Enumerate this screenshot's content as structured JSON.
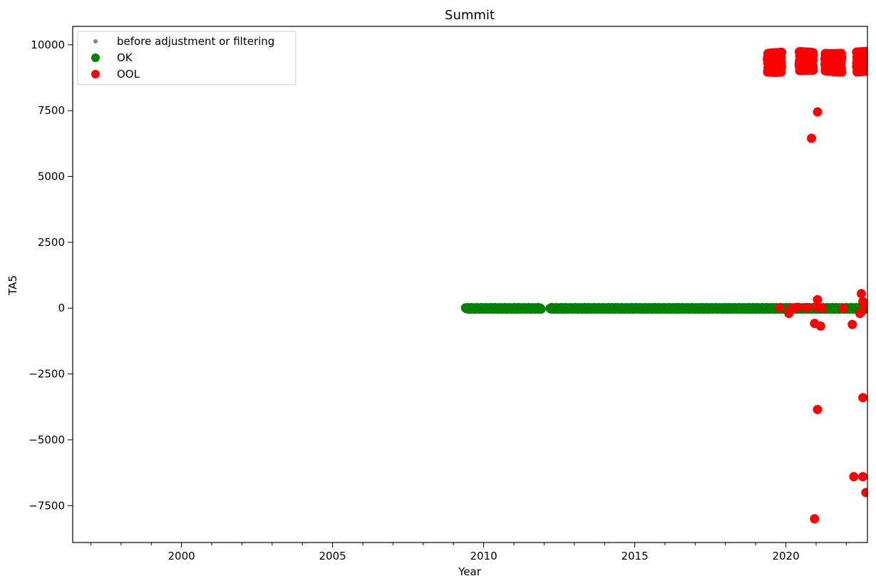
{
  "chart_data": {
    "type": "scatter",
    "title": "Summit",
    "xlabel": "Year",
    "ylabel": "TA5",
    "xlim": [
      1996.4,
      2022.7
    ],
    "ylim": [
      -8900,
      10700
    ],
    "x_ticks": [
      2000,
      2005,
      2010,
      2015,
      2020
    ],
    "x_tick_labels": [
      "2000",
      "2005",
      "2010",
      "2015",
      "2020"
    ],
    "y_ticks": [
      -7500,
      -5000,
      -2500,
      0,
      2500,
      5000,
      7500,
      10000
    ],
    "y_tick_labels": [
      "−7500",
      "−5000",
      "−2500",
      "0",
      "2500",
      "5000",
      "7500",
      "10000"
    ],
    "grid": false,
    "legend_position": "top-left",
    "series": [
      {
        "name": "before adjustment or filtering",
        "color": "#808080",
        "marker": "small-dot",
        "points": []
      },
      {
        "name": "OK",
        "color": "#008000",
        "marker": "dot",
        "segments": [
          {
            "x_start": 2009.4,
            "x_end": 2011.9,
            "y": 0
          },
          {
            "x_start": 2012.2,
            "x_end": 2019.0,
            "y": 0
          },
          {
            "x_start": 2019.0,
            "x_end": 2022.7,
            "y": 0
          }
        ]
      },
      {
        "name": "OOL",
        "color": "#ff0000",
        "marker": "dot",
        "clusters": [
          {
            "x_start": 2019.4,
            "x_end": 2019.85,
            "y_min": 9000,
            "y_max": 9800
          },
          {
            "x_start": 2020.45,
            "x_end": 2020.9,
            "y_min": 9000,
            "y_max": 9800
          },
          {
            "x_start": 2021.3,
            "x_end": 2021.85,
            "y_min": 9000,
            "y_max": 9800
          },
          {
            "x_start": 2022.35,
            "x_end": 2022.7,
            "y_min": 9000,
            "y_max": 9800
          }
        ],
        "points": [
          [
            2021.05,
            7450
          ],
          [
            2020.85,
            6450
          ],
          [
            2019.8,
            20
          ],
          [
            2020.1,
            -200
          ],
          [
            2020.2,
            0
          ],
          [
            2020.3,
            10
          ],
          [
            2020.4,
            30
          ],
          [
            2020.7,
            20
          ],
          [
            2020.95,
            -580
          ],
          [
            2021.05,
            320
          ],
          [
            2021.15,
            -680
          ],
          [
            2021.0,
            50
          ],
          [
            2021.2,
            0
          ],
          [
            2021.9,
            0
          ],
          [
            2022.2,
            -620
          ],
          [
            2022.5,
            550
          ],
          [
            2022.55,
            250
          ],
          [
            2022.6,
            100
          ],
          [
            2022.5,
            -150
          ],
          [
            2022.45,
            -200
          ],
          [
            2021.05,
            -3850
          ],
          [
            2022.55,
            -3400
          ],
          [
            2022.25,
            -6400
          ],
          [
            2022.55,
            -6400
          ],
          [
            2022.65,
            -7000
          ],
          [
            2020.95,
            -8000
          ]
        ]
      }
    ]
  }
}
